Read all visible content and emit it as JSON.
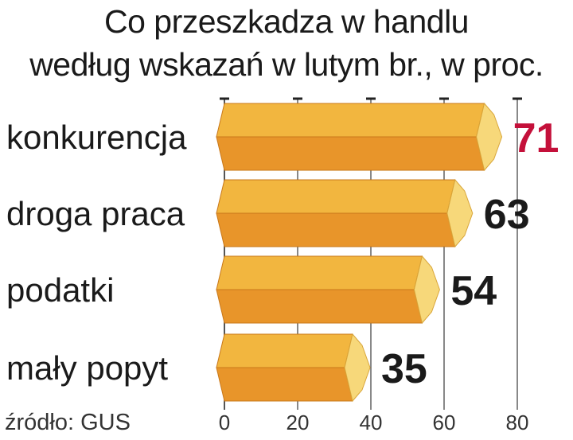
{
  "title_line_1": "Co przeszkadza w handlu",
  "title_line_2": "według wskazań w lutym br., w proc.",
  "source": "źródło: GUS",
  "colors": {
    "bar_top": "#f2b63f",
    "bar_bottom": "#e8952a",
    "bar_end": "#f7d87a",
    "highlight_value": "#c4103a",
    "value": "#1a1a1a",
    "grid": "#555555"
  },
  "chart_data": {
    "type": "bar",
    "orientation": "horizontal",
    "title": "Co przeszkadza w handlu według wskazań w lutym br., w proc.",
    "categories": [
      "konkurencja",
      "droga praca",
      "podatki",
      "mały popyt"
    ],
    "values": [
      71,
      63,
      54,
      35
    ],
    "value_labels": [
      "71",
      "63",
      "54",
      "35"
    ],
    "highlight_index": 0,
    "xlim": [
      0,
      80
    ],
    "x_ticks": [
      "0",
      "20",
      "40",
      "60",
      "80"
    ],
    "grid": true
  }
}
